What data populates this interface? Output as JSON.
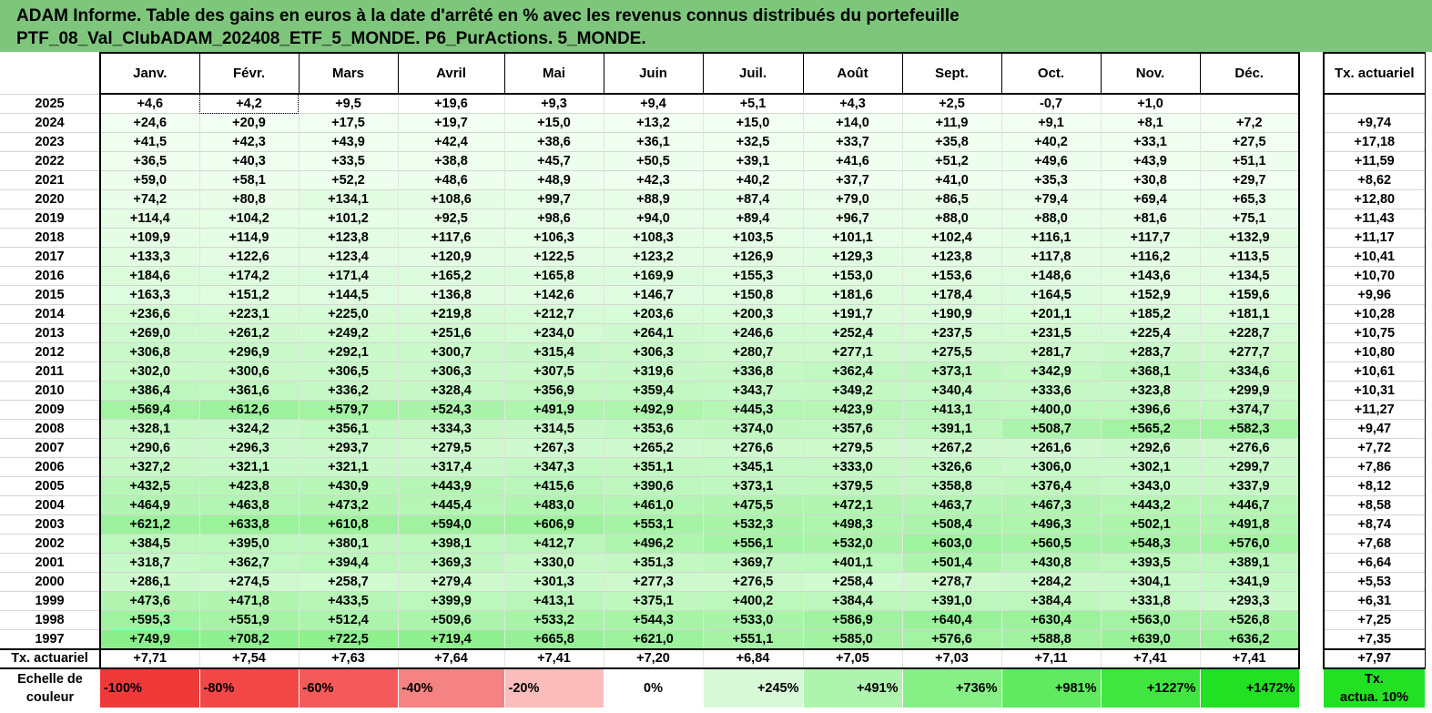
{
  "title_line1": "ADAM Informe. Table des gains en euros à la date d'arrêté en % avec les revenus connus distribués du portefeuille",
  "title_line2": "PTF_08_Val_ClubADAM_202408_ETF_5_MONDE. P6_PurActions. 5_MONDE.",
  "months": [
    "Janv.",
    "Févr.",
    "Mars",
    "Avril",
    "Mai",
    "Juin",
    "Juil.",
    "Août",
    "Sept.",
    "Oct.",
    "Nov.",
    "Déc."
  ],
  "tx_header": "Tx. actuariel",
  "rows": [
    {
      "year": "2025",
      "values": [
        "+4,6",
        "+4,2",
        "+9,5",
        "+19,6",
        "+9,3",
        "+9,4",
        "+5,1",
        "+4,3",
        "+2,5",
        "-0,7",
        "+1,0",
        ""
      ],
      "tx": ""
    },
    {
      "year": "2024",
      "values": [
        "+24,6",
        "+20,9",
        "+17,5",
        "+19,7",
        "+15,0",
        "+13,2",
        "+15,0",
        "+14,0",
        "+11,9",
        "+9,1",
        "+8,1",
        "+7,2"
      ],
      "tx": "+9,74"
    },
    {
      "year": "2023",
      "values": [
        "+41,5",
        "+42,3",
        "+43,9",
        "+42,4",
        "+38,6",
        "+36,1",
        "+32,5",
        "+33,7",
        "+35,8",
        "+40,2",
        "+33,1",
        "+27,5"
      ],
      "tx": "+17,18"
    },
    {
      "year": "2022",
      "values": [
        "+36,5",
        "+40,3",
        "+33,5",
        "+38,8",
        "+45,7",
        "+50,5",
        "+39,1",
        "+41,6",
        "+51,2",
        "+49,6",
        "+43,9",
        "+51,1"
      ],
      "tx": "+11,59"
    },
    {
      "year": "2021",
      "values": [
        "+59,0",
        "+58,1",
        "+52,2",
        "+48,6",
        "+48,9",
        "+42,3",
        "+40,2",
        "+37,7",
        "+41,0",
        "+35,3",
        "+30,8",
        "+29,7"
      ],
      "tx": "+8,62"
    },
    {
      "year": "2020",
      "values": [
        "+74,2",
        "+80,8",
        "+134,1",
        "+108,6",
        "+99,7",
        "+88,9",
        "+87,4",
        "+79,0",
        "+86,5",
        "+79,4",
        "+69,4",
        "+65,3"
      ],
      "tx": "+12,80"
    },
    {
      "year": "2019",
      "values": [
        "+114,4",
        "+104,2",
        "+101,2",
        "+92,5",
        "+98,6",
        "+94,0",
        "+89,4",
        "+96,7",
        "+88,0",
        "+88,0",
        "+81,6",
        "+75,1"
      ],
      "tx": "+11,43"
    },
    {
      "year": "2018",
      "values": [
        "+109,9",
        "+114,9",
        "+123,8",
        "+117,6",
        "+106,3",
        "+108,3",
        "+103,5",
        "+101,1",
        "+102,4",
        "+116,1",
        "+117,7",
        "+132,9"
      ],
      "tx": "+11,17"
    },
    {
      "year": "2017",
      "values": [
        "+133,3",
        "+122,6",
        "+123,4",
        "+120,9",
        "+122,5",
        "+123,2",
        "+126,9",
        "+129,3",
        "+123,8",
        "+117,8",
        "+116,2",
        "+113,5"
      ],
      "tx": "+10,41"
    },
    {
      "year": "2016",
      "values": [
        "+184,6",
        "+174,2",
        "+171,4",
        "+165,2",
        "+165,8",
        "+169,9",
        "+155,3",
        "+153,0",
        "+153,6",
        "+148,6",
        "+143,6",
        "+134,5"
      ],
      "tx": "+10,70"
    },
    {
      "year": "2015",
      "values": [
        "+163,3",
        "+151,2",
        "+144,5",
        "+136,8",
        "+142,6",
        "+146,7",
        "+150,8",
        "+181,6",
        "+178,4",
        "+164,5",
        "+152,9",
        "+159,6"
      ],
      "tx": "+9,96"
    },
    {
      "year": "2014",
      "values": [
        "+236,6",
        "+223,1",
        "+225,0",
        "+219,8",
        "+212,7",
        "+203,6",
        "+200,3",
        "+191,7",
        "+190,9",
        "+201,1",
        "+185,2",
        "+181,1"
      ],
      "tx": "+10,28"
    },
    {
      "year": "2013",
      "values": [
        "+269,0",
        "+261,2",
        "+249,2",
        "+251,6",
        "+234,0",
        "+264,1",
        "+246,6",
        "+252,4",
        "+237,5",
        "+231,5",
        "+225,4",
        "+228,7"
      ],
      "tx": "+10,75"
    },
    {
      "year": "2012",
      "values": [
        "+306,8",
        "+296,9",
        "+292,1",
        "+300,7",
        "+315,4",
        "+306,3",
        "+280,7",
        "+277,1",
        "+275,5",
        "+281,7",
        "+283,7",
        "+277,7"
      ],
      "tx": "+10,80"
    },
    {
      "year": "2011",
      "values": [
        "+302,0",
        "+300,6",
        "+306,5",
        "+306,3",
        "+307,5",
        "+319,6",
        "+336,8",
        "+362,4",
        "+373,1",
        "+342,9",
        "+368,1",
        "+334,6"
      ],
      "tx": "+10,61"
    },
    {
      "year": "2010",
      "values": [
        "+386,4",
        "+361,6",
        "+336,2",
        "+328,4",
        "+356,9",
        "+359,4",
        "+343,7",
        "+349,2",
        "+340,4",
        "+333,6",
        "+323,8",
        "+299,9"
      ],
      "tx": "+10,31"
    },
    {
      "year": "2009",
      "values": [
        "+569,4",
        "+612,6",
        "+579,7",
        "+524,3",
        "+491,9",
        "+492,9",
        "+445,3",
        "+423,9",
        "+413,1",
        "+400,0",
        "+396,6",
        "+374,7"
      ],
      "tx": "+11,27"
    },
    {
      "year": "2008",
      "values": [
        "+328,1",
        "+324,2",
        "+356,1",
        "+334,3",
        "+314,5",
        "+353,6",
        "+374,0",
        "+357,6",
        "+391,1",
        "+508,7",
        "+565,2",
        "+582,3"
      ],
      "tx": "+9,47"
    },
    {
      "year": "2007",
      "values": [
        "+290,6",
        "+296,3",
        "+293,7",
        "+279,5",
        "+267,3",
        "+265,2",
        "+276,6",
        "+279,5",
        "+267,2",
        "+261,6",
        "+292,6",
        "+276,6"
      ],
      "tx": "+7,72"
    },
    {
      "year": "2006",
      "values": [
        "+327,2",
        "+321,1",
        "+321,1",
        "+317,4",
        "+347,3",
        "+351,1",
        "+345,1",
        "+333,0",
        "+326,6",
        "+306,0",
        "+302,1",
        "+299,7"
      ],
      "tx": "+7,86"
    },
    {
      "year": "2005",
      "values": [
        "+432,5",
        "+423,8",
        "+430,9",
        "+443,9",
        "+415,6",
        "+390,6",
        "+373,1",
        "+379,5",
        "+358,8",
        "+376,4",
        "+343,0",
        "+337,9"
      ],
      "tx": "+8,12"
    },
    {
      "year": "2004",
      "values": [
        "+464,9",
        "+463,8",
        "+473,2",
        "+445,4",
        "+483,0",
        "+461,0",
        "+475,5",
        "+472,1",
        "+463,7",
        "+467,3",
        "+443,2",
        "+446,7"
      ],
      "tx": "+8,58"
    },
    {
      "year": "2003",
      "values": [
        "+621,2",
        "+633,8",
        "+610,8",
        "+594,0",
        "+606,9",
        "+553,1",
        "+532,3",
        "+498,3",
        "+508,4",
        "+496,3",
        "+502,1",
        "+491,8"
      ],
      "tx": "+8,74"
    },
    {
      "year": "2002",
      "values": [
        "+384,5",
        "+395,0",
        "+380,1",
        "+398,1",
        "+412,7",
        "+496,2",
        "+556,1",
        "+532,0",
        "+603,0",
        "+560,5",
        "+548,3",
        "+576,0"
      ],
      "tx": "+7,68"
    },
    {
      "year": "2001",
      "values": [
        "+318,7",
        "+362,7",
        "+394,4",
        "+369,3",
        "+330,0",
        "+351,3",
        "+369,7",
        "+401,1",
        "+501,4",
        "+430,8",
        "+393,5",
        "+389,1"
      ],
      "tx": "+6,64"
    },
    {
      "year": "2000",
      "values": [
        "+286,1",
        "+274,5",
        "+258,7",
        "+279,4",
        "+301,3",
        "+277,3",
        "+276,5",
        "+258,4",
        "+278,7",
        "+284,2",
        "+304,1",
        "+341,9"
      ],
      "tx": "+5,53"
    },
    {
      "year": "1999",
      "values": [
        "+473,6",
        "+471,8",
        "+433,5",
        "+399,9",
        "+413,1",
        "+375,1",
        "+400,2",
        "+384,4",
        "+391,0",
        "+384,4",
        "+331,8",
        "+293,3"
      ],
      "tx": "+6,31"
    },
    {
      "year": "1998",
      "values": [
        "+595,3",
        "+551,9",
        "+512,4",
        "+509,6",
        "+533,2",
        "+544,3",
        "+533,0",
        "+586,9",
        "+640,4",
        "+630,4",
        "+563,0",
        "+526,8"
      ],
      "tx": "+7,25"
    },
    {
      "year": "1997",
      "values": [
        "+749,9",
        "+708,2",
        "+722,5",
        "+719,4",
        "+665,8",
        "+621,0",
        "+551,1",
        "+585,0",
        "+576,6",
        "+588,8",
        "+639,0",
        "+636,2"
      ],
      "tx": "+7,35"
    }
  ],
  "tx_row": {
    "label": "Tx. actuariel",
    "values": [
      "+7,71",
      "+7,54",
      "+7,63",
      "+7,64",
      "+7,41",
      "+7,20",
      "+6,84",
      "+7,05",
      "+7,03",
      "+7,11",
      "+7,41",
      "+7,41"
    ],
    "tx": "+7,97"
  },
  "scale": {
    "label_line1": "Echelle de",
    "label_line2": "couleur",
    "items": [
      {
        "text": "-100%",
        "color": "#f03a3a",
        "align": "left"
      },
      {
        "text": "-80%",
        "color": "#f24848",
        "align": "left"
      },
      {
        "text": "-60%",
        "color": "#f45a5a",
        "align": "left"
      },
      {
        "text": "-40%",
        "color": "#f68383",
        "align": "left"
      },
      {
        "text": "-20%",
        "color": "#fbbcbc",
        "align": "left"
      },
      {
        "text": "0%",
        "color": "#ffffff",
        "align": "center"
      },
      {
        "text": "+245%",
        "color": "#d8f9d8",
        "align": "right"
      },
      {
        "text": "+491%",
        "color": "#aef4ae",
        "align": "right"
      },
      {
        "text": "+736%",
        "color": "#86ef86",
        "align": "right"
      },
      {
        "text": "+981%",
        "color": "#5fea5f",
        "align": "right"
      },
      {
        "text": "+1227%",
        "color": "#3fe63f",
        "align": "right"
      },
      {
        "text": "+1472%",
        "color": "#22e022",
        "align": "right"
      }
    ],
    "tx_line1": "Tx.",
    "tx_line2": "actua. 10%",
    "tx_color": "#22e022"
  },
  "colors": {
    "title_bg": "#7dc67c",
    "max_gain": 1472
  }
}
